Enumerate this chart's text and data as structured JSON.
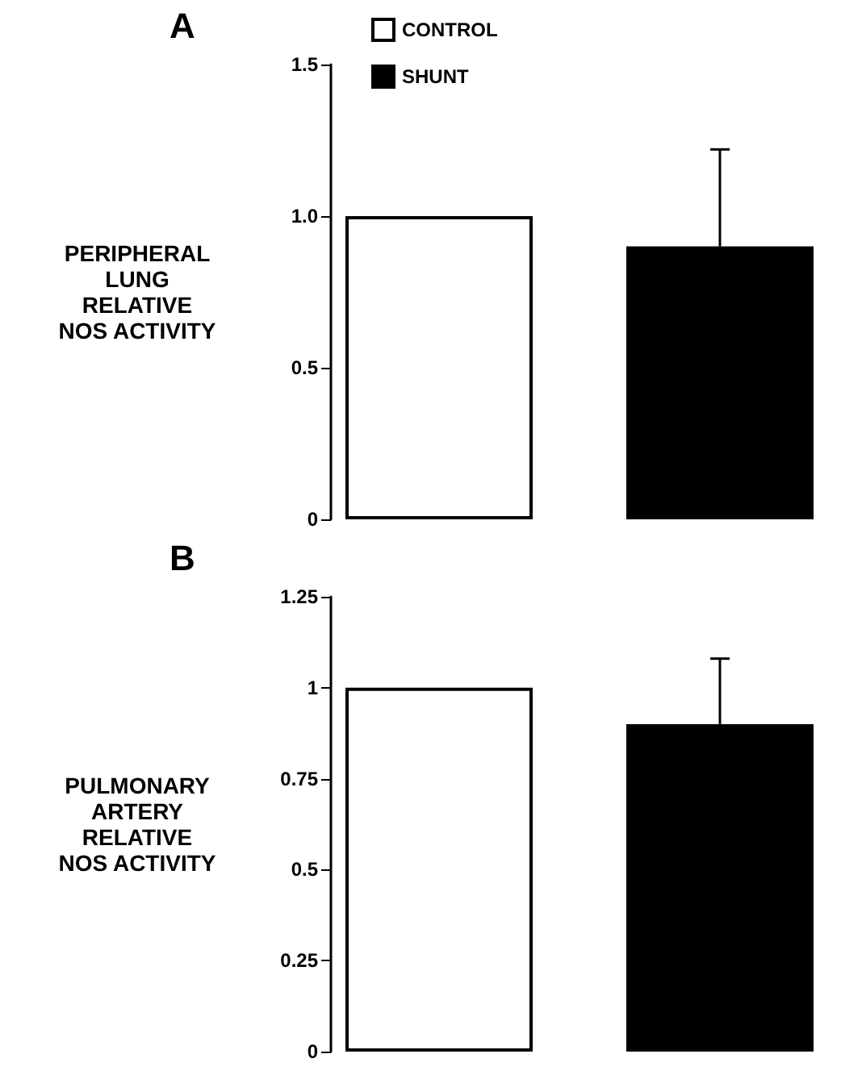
{
  "chart_data": [
    {
      "type": "bar",
      "title": "A",
      "ylabel": "PERIPHERAL\nLUNG\nRELATIVE\nNOS ACTIVITY",
      "categories": [
        null
      ],
      "series": [
        {
          "name": "CONTROL",
          "color": "#ffffff",
          "values": [
            1.0
          ]
        },
        {
          "name": "SHUNT",
          "color": "#000000",
          "values": [
            0.9
          ],
          "errors": [
            [
              0.9,
              1.22
            ]
          ]
        }
      ],
      "ylim": [
        0,
        1.5
      ],
      "yticks": [
        0,
        {
          "value": 0.5,
          "label": "0.5"
        },
        {
          "value": 1,
          "label": "1.0"
        },
        {
          "value": 1.5,
          "label": "1.5"
        }
      ],
      "grid": false,
      "legend": "top left"
    },
    {
      "type": "bar",
      "title": "B",
      "ylabel": "PULMONARY\nARTERY\nRELATIVE\nNOS ACTIVITY",
      "categories": [
        null
      ],
      "series": [
        {
          "color": "#ffffff",
          "values": [
            1.0
          ]
        },
        {
          "color": "#000000",
          "values": [
            0.9
          ],
          "errors": [
            [
              0.9,
              1.08
            ]
          ]
        }
      ],
      "ylim": [
        0,
        1.25
      ],
      "yticks": [
        0,
        0.25,
        0.5,
        0.75,
        1,
        1.25
      ],
      "grid": false,
      "legend": false
    }
  ]
}
